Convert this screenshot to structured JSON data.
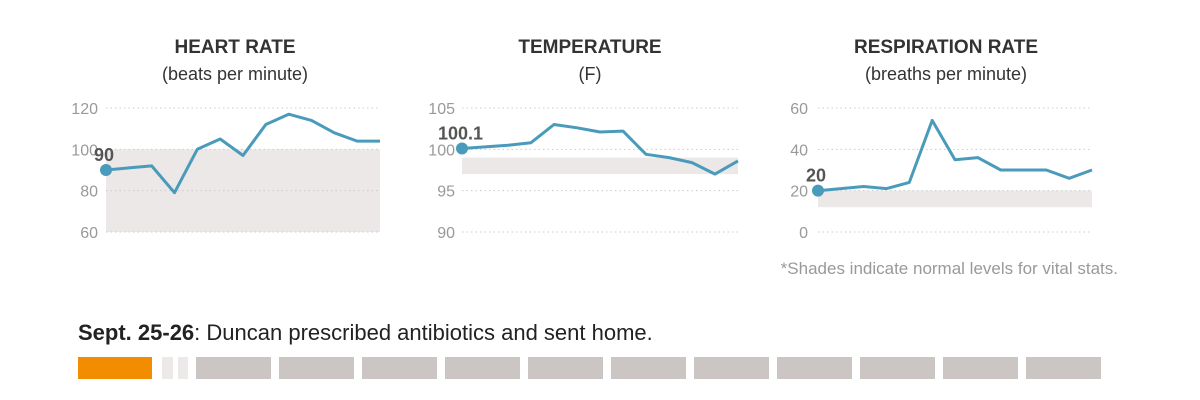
{
  "colors": {
    "line": "#4a9bbb",
    "shade": "#ebe8e7",
    "grid": "#cccccc",
    "active": "#f28c00",
    "segment": "#cbc5c4",
    "segment_light": "#ece9e8"
  },
  "charts": [
    {
      "title": "HEART RATE",
      "subtitle": "(beats per minute)",
      "chart_data": {
        "type": "line",
        "title": "HEART RATE",
        "ylabel": "(beats per minute)",
        "ylim": [
          60,
          120
        ],
        "yticks": [
          60,
          80,
          100,
          120
        ],
        "grid": true,
        "normal_range": [
          60,
          100
        ],
        "series": [
          {
            "values": [
              90,
              91,
              92,
              79,
              100,
              105,
              97,
              112,
              117,
              114,
              108,
              104,
              104
            ]
          }
        ],
        "start_label": "90"
      }
    },
    {
      "title": "TEMPERATURE",
      "subtitle": "(F)",
      "chart_data": {
        "type": "line",
        "title": "TEMPERATURE",
        "ylabel": "(F)",
        "ylim": [
          90,
          105
        ],
        "yticks": [
          90,
          95,
          100,
          105
        ],
        "grid": true,
        "normal_range": [
          97,
          99
        ],
        "series": [
          {
            "values": [
              100.1,
              100.3,
              100.5,
              100.8,
              103,
              102.6,
              102.1,
              102.2,
              99.4,
              99,
              98.4,
              97,
              98.6
            ]
          }
        ],
        "start_label": "100.1"
      }
    },
    {
      "title": "RESPIRATION RATE",
      "subtitle": "(breaths per minute)",
      "chart_data": {
        "type": "line",
        "title": "RESPIRATION RATE",
        "ylabel": "(breaths per minute)",
        "ylim": [
          0,
          60
        ],
        "yticks": [
          0,
          20,
          40,
          60
        ],
        "grid": true,
        "normal_range": [
          12,
          20
        ],
        "series": [
          {
            "values": [
              20,
              21,
              22,
              21,
              24,
              54,
              35,
              36,
              30,
              30,
              30,
              26,
              30
            ]
          }
        ],
        "start_label": "20"
      }
    }
  ],
  "note": "*Shades indicate normal levels for vital stats.",
  "caption": {
    "date": "Sept. 25-26",
    "text": ": Duncan prescribed antibiotics and sent home."
  },
  "timeline": {
    "segments": 14,
    "active_index": 0
  }
}
